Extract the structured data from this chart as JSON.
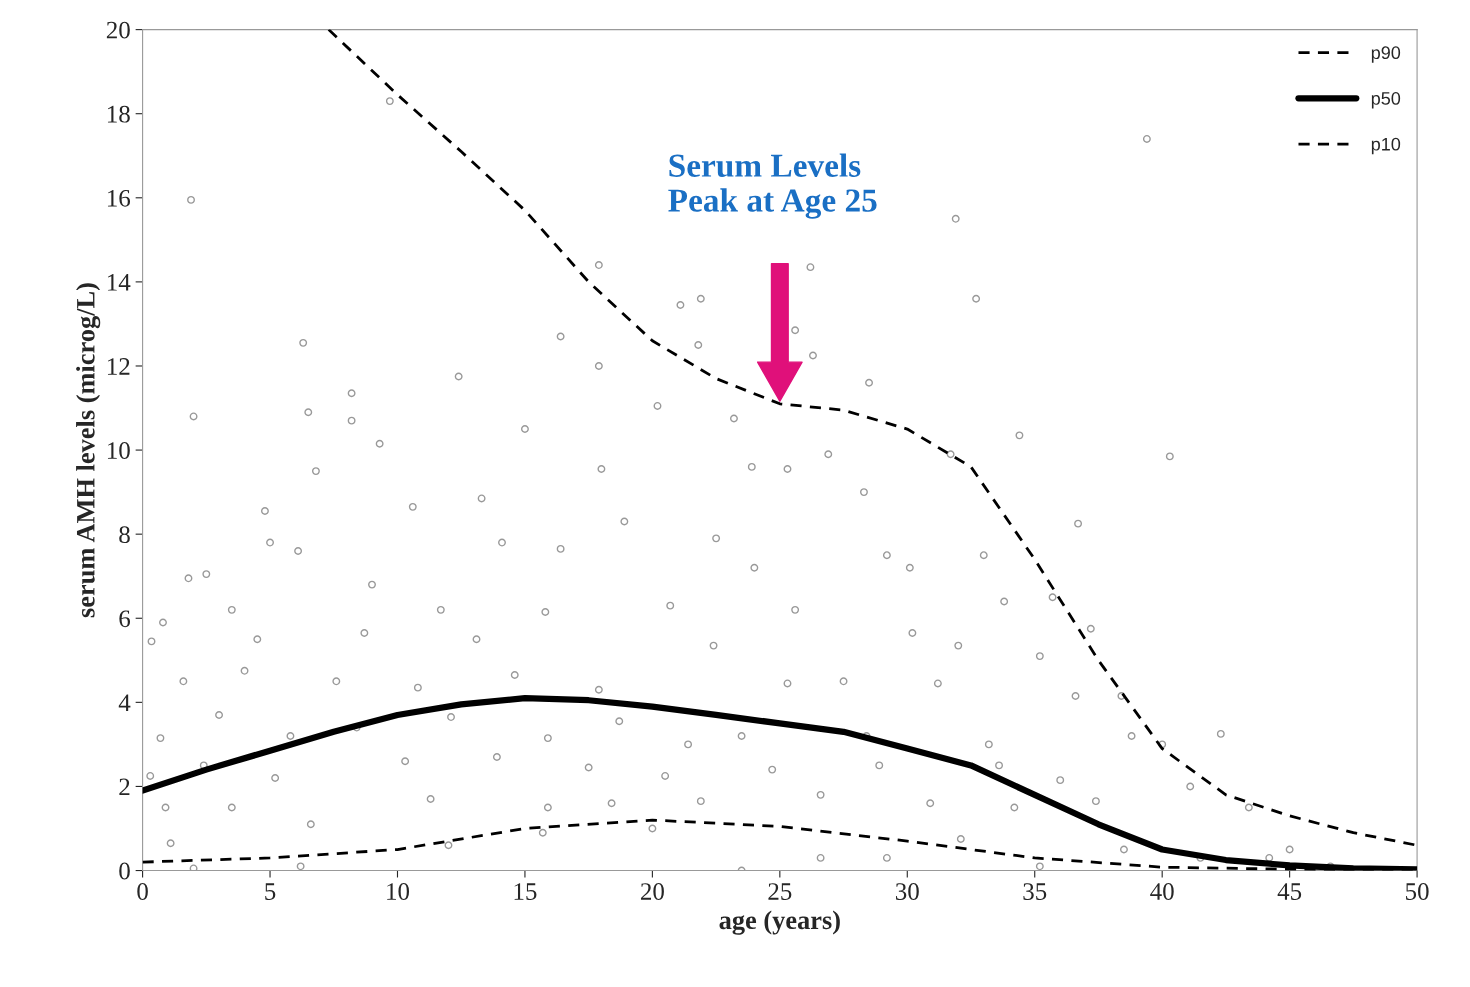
{
  "chart_data": {
    "type": "scatter",
    "xlabel": "age (years)",
    "ylabel": "serum AMH levels (microg/L)",
    "xlim": [
      0,
      50
    ],
    "xticks": [
      0,
      5,
      10,
      15,
      20,
      25,
      30,
      35,
      40,
      45,
      50
    ],
    "ylim": [
      0,
      20
    ],
    "yticks": [
      0,
      2,
      4,
      6,
      8,
      10,
      12,
      14,
      16,
      18,
      20
    ],
    "grid": false,
    "legend": "top right",
    "annotations": [
      "Serum Levels\nPeak at Age 25"
    ],
    "series": [
      {
        "color": "#999999",
        "marker": "circle",
        "x": [
          1.9,
          9.7,
          39.4,
          31.9,
          17.9,
          26.2,
          21.9,
          32.7,
          21.1,
          25.6,
          6.3,
          16.4,
          21.8,
          26.3,
          12.4,
          17.9,
          28.5,
          8.2,
          2.0,
          6.5,
          8.2,
          20.2,
          23.2,
          15.0,
          34.4,
          9.3,
          40.3,
          18.0,
          23.9,
          25.3,
          6.8,
          26.9,
          10.6,
          13.3,
          28.3,
          36.7,
          4.8,
          31.7,
          18.9,
          5.0,
          14.1,
          22.5,
          16.4,
          29.2,
          33.0,
          6.1,
          1.8,
          2.5,
          30.1,
          24.0,
          0.8,
          3.5,
          9.0,
          11.7,
          15.8,
          20.7,
          25.6,
          33.8,
          35.7,
          37.2,
          0.35,
          4.5,
          8.7,
          13.1,
          22.4,
          30.2,
          32.0,
          35.2,
          1.6,
          4.0,
          7.6,
          10.8,
          14.6,
          17.9,
          25.3,
          27.5,
          31.2,
          36.6,
          38.4,
          42.3,
          0.7,
          3.0,
          5.8,
          8.4,
          12.1,
          15.9,
          18.7,
          21.4,
          23.5,
          28.4,
          33.2,
          38.8,
          40.0,
          0.3,
          2.4,
          5.2,
          10.3,
          13.9,
          17.5,
          20.5,
          24.7,
          28.9,
          33.6,
          36.0,
          41.1,
          0.9,
          3.5,
          6.6,
          11.3,
          15.9,
          18.4,
          21.9,
          26.6,
          30.9,
          34.2,
          37.4,
          43.4,
          1.1,
          6.2,
          12.0,
          15.7,
          20.0,
          23.5,
          26.6,
          29.2,
          32.1,
          35.2,
          38.5,
          41.5,
          44.2,
          46.6,
          45.0,
          2.0
        ],
        "values": [
          15.95,
          18.3,
          17.4,
          15.5,
          14.4,
          14.35,
          13.6,
          13.6,
          13.45,
          12.85,
          12.55,
          12.7,
          12.5,
          12.25,
          11.75,
          12.0,
          11.6,
          11.35,
          10.8,
          10.9,
          10.7,
          11.05,
          10.75,
          10.5,
          10.35,
          10.15,
          9.85,
          9.55,
          9.6,
          9.55,
          9.5,
          9.9,
          8.65,
          8.85,
          9.0,
          8.25,
          8.55,
          9.9,
          8.3,
          7.8,
          7.8,
          7.9,
          7.65,
          7.5,
          7.5,
          7.6,
          6.95,
          7.05,
          7.2,
          7.2,
          5.9,
          6.2,
          6.8,
          6.2,
          6.15,
          6.3,
          6.2,
          6.4,
          6.5,
          5.75,
          5.45,
          5.5,
          5.65,
          5.5,
          5.35,
          5.65,
          5.35,
          5.1,
          4.5,
          4.75,
          4.5,
          4.35,
          4.65,
          4.3,
          4.45,
          4.5,
          4.45,
          4.15,
          4.15,
          3.25,
          3.15,
          3.7,
          3.2,
          3.4,
          3.65,
          3.15,
          3.55,
          3.0,
          3.2,
          3.2,
          3.0,
          3.2,
          3.0,
          2.25,
          2.5,
          2.2,
          2.6,
          2.7,
          2.45,
          2.25,
          2.4,
          2.5,
          2.5,
          2.15,
          2.0,
          1.5,
          1.5,
          1.1,
          1.7,
          1.5,
          1.6,
          1.65,
          1.8,
          1.6,
          1.5,
          1.65,
          1.5,
          0.65,
          0.1,
          0.6,
          0.9,
          1.0,
          0.0,
          0.3,
          0.3,
          0.75,
          0.1,
          0.5,
          0.3,
          0.3,
          0.1,
          0.5,
          0.05
        ]
      },
      {
        "type": "line",
        "name": "p90",
        "color": "#000000",
        "line_style": "dashed",
        "x": [
          7.3,
          10,
          12.5,
          15,
          17.5,
          20,
          22.5,
          25,
          27.5,
          30,
          32.5,
          35,
          37.5,
          40,
          42.5,
          45,
          47.5,
          50
        ],
        "values": [
          20,
          18.45,
          17.1,
          15.7,
          14.0,
          12.6,
          11.7,
          11.1,
          10.95,
          10.5,
          9.6,
          7.4,
          5.0,
          2.9,
          1.8,
          1.3,
          0.9,
          0.6
        ]
      },
      {
        "type": "line",
        "name": "p50",
        "color": "#000000",
        "line_style": "solid",
        "x": [
          0,
          2.5,
          5,
          7.5,
          10,
          12.5,
          15,
          17.5,
          20,
          22.5,
          25,
          27.5,
          30,
          32.5,
          35,
          37.5,
          40,
          42.5,
          45,
          47.5,
          50
        ],
        "values": [
          1.9,
          2.4,
          2.85,
          3.3,
          3.7,
          3.95,
          4.1,
          4.05,
          3.9,
          3.7,
          3.5,
          3.3,
          2.9,
          2.5,
          1.8,
          1.1,
          0.5,
          0.25,
          0.12,
          0.05,
          0.03
        ]
      },
      {
        "type": "line",
        "name": "p10",
        "color": "#000000",
        "line_style": "dashed",
        "x": [
          0,
          5,
          10,
          15,
          20,
          25,
          30,
          35,
          40,
          45,
          50
        ],
        "values": [
          0.2,
          0.3,
          0.5,
          1.0,
          1.2,
          1.05,
          0.7,
          0.3,
          0.08,
          0.03,
          0.0
        ]
      }
    ]
  }
}
